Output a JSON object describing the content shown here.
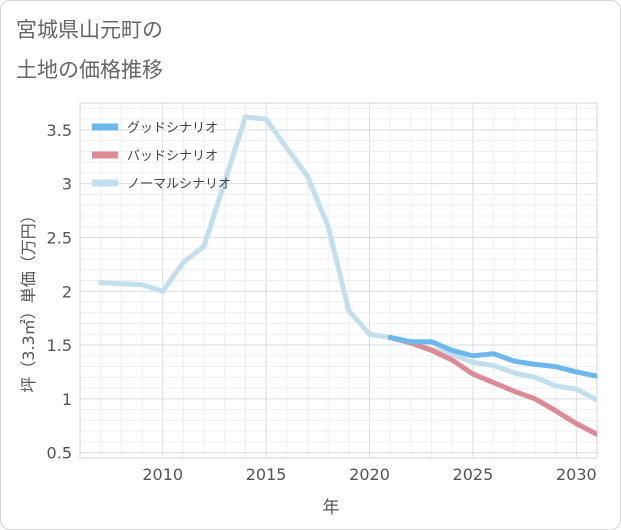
{
  "title": {
    "line1": "宮城県山元町の",
    "line2": "土地の価格推移"
  },
  "chart_data": {
    "type": "line",
    "title": "宮城県山元町の土地の価格推移",
    "xlabel": "年",
    "ylabel": "坪（3.3㎡）単価（万円）",
    "xlim": [
      2006,
      2031
    ],
    "ylim": [
      0.45,
      3.75
    ],
    "xticks": [
      2010,
      2015,
      2020,
      2025,
      2030
    ],
    "yticks": [
      0.5,
      1,
      1.5,
      2,
      2.5,
      3,
      3.5
    ],
    "ytick_labels": [
      "0.5",
      "1",
      "1.5",
      "2",
      "2.5",
      "3",
      "3.5"
    ],
    "grid": true,
    "legend_position": "top-left",
    "series": [
      {
        "name": "グッドシナリオ",
        "color": "#6cb8ed",
        "x": [
          2021,
          2022,
          2023,
          2024,
          2025,
          2026,
          2027,
          2028,
          2029,
          2030,
          2031
        ],
        "values": [
          1.57,
          1.53,
          1.53,
          1.45,
          1.4,
          1.42,
          1.35,
          1.32,
          1.3,
          1.25,
          1.21
        ]
      },
      {
        "name": "バッドシナリオ",
        "color": "#dd8a94",
        "x": [
          2021,
          2022,
          2023,
          2024,
          2025,
          2026,
          2027,
          2028,
          2029,
          2030,
          2031
        ],
        "values": [
          1.57,
          1.52,
          1.45,
          1.36,
          1.23,
          1.15,
          1.07,
          1.0,
          0.89,
          0.77,
          0.67
        ]
      },
      {
        "name": "ノーマルシナリオ",
        "color": "#c3dfed",
        "x": [
          2007,
          2008,
          2009,
          2010,
          2011,
          2012,
          2013,
          2014,
          2015,
          2016,
          2017,
          2018,
          2019,
          2020,
          2021,
          2022,
          2023,
          2024,
          2025,
          2026,
          2027,
          2028,
          2029,
          2030,
          2031
        ],
        "values": [
          2.08,
          2.07,
          2.06,
          2.0,
          2.27,
          2.42,
          3.02,
          3.62,
          3.6,
          3.33,
          3.07,
          2.6,
          1.82,
          1.6,
          1.57,
          1.53,
          1.46,
          1.41,
          1.34,
          1.31,
          1.24,
          1.2,
          1.12,
          1.09,
          0.99
        ]
      }
    ]
  }
}
